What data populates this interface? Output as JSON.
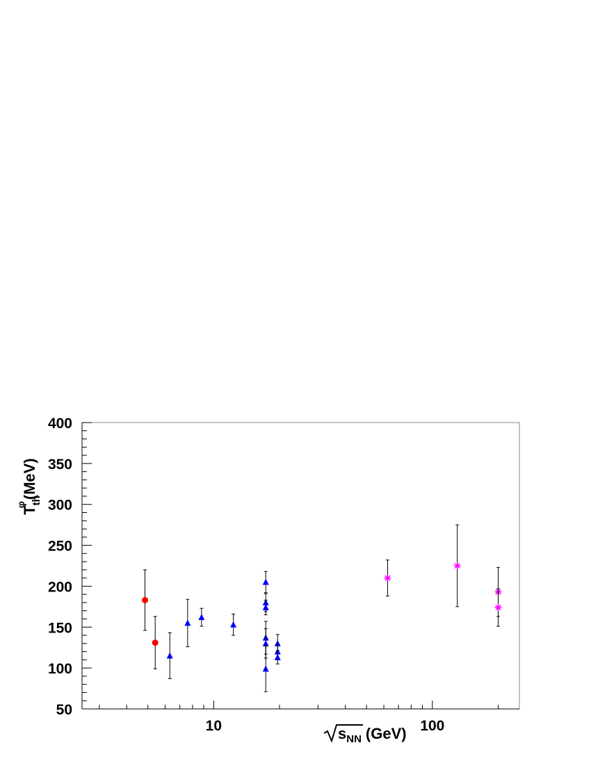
{
  "chart_data": {
    "type": "scatter",
    "xlabel": {
      "radicand": "s",
      "sub": "NN",
      "unit": "(GeV)"
    },
    "ylabel": {
      "main": "T",
      "sub": "th",
      "sup": "φ",
      "unit": "(MeV)"
    },
    "xscale": "log",
    "xlim": [
      2.5,
      250
    ],
    "xticks": [
      10,
      100
    ],
    "xminorticks": [
      3,
      4,
      5,
      6,
      7,
      8,
      9,
      20,
      30,
      40,
      50,
      60,
      70,
      80,
      90,
      200
    ],
    "ylim": [
      50,
      400
    ],
    "yticks": [
      50,
      100,
      150,
      200,
      250,
      300,
      350,
      400
    ],
    "yminorticks": [
      60,
      70,
      80,
      90,
      110,
      120,
      130,
      140,
      160,
      170,
      180,
      190,
      210,
      220,
      230,
      240,
      260,
      270,
      280,
      290,
      310,
      320,
      330,
      340,
      360,
      370,
      380,
      390
    ],
    "grid": false,
    "series": [
      {
        "marker": "circle",
        "color": "#ff0000",
        "x": [
          4.85,
          5.4
        ],
        "values": [
          183,
          131
        ],
        "errors": [
          37,
          32
        ]
      },
      {
        "marker": "triangle",
        "color": "#0000ff",
        "x": [
          6.3,
          7.6,
          8.8,
          12.3,
          17.3,
          17.3,
          17.3,
          17.3,
          17.3,
          17.3,
          19.6,
          19.6,
          19.6
        ],
        "values": [
          115,
          155,
          162,
          153,
          205,
          180,
          174,
          137,
          130,
          99,
          130,
          120,
          113
        ],
        "errors": [
          28,
          29,
          11,
          13,
          13,
          11,
          9,
          20,
          18,
          28,
          11,
          9,
          8
        ]
      },
      {
        "marker": "star",
        "color": "#ff00ff",
        "x": [
          62.4,
          130,
          200,
          200
        ],
        "values": [
          210,
          225,
          193,
          174
        ],
        "errors": [
          22,
          50,
          30,
          23
        ]
      }
    ]
  }
}
